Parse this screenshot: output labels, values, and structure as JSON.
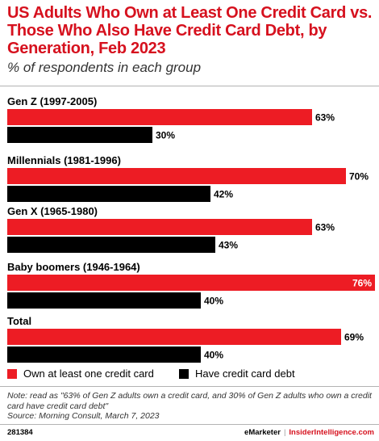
{
  "title": "US Adults Who Own at Least One Credit Card vs. Those Who Also Have Credit Card Debt, by Generation, Feb 2023",
  "subtitle": "% of respondents in each group",
  "colors": {
    "accent": "#d6111e",
    "series_own": "#ed1c24",
    "series_debt": "#000000"
  },
  "chart_data": {
    "type": "bar",
    "orientation": "horizontal",
    "categories": [
      "Gen Z (1997-2005)",
      "Millennials (1981-1996)",
      "Gen X (1965-1980)",
      "Baby boomers (1946-1964)",
      "Total"
    ],
    "series": [
      {
        "name": "Own at least one credit card",
        "values": [
          63,
          70,
          63,
          76,
          69
        ],
        "labels": [
          "63%",
          "70%",
          "63%",
          "76%",
          "69%"
        ]
      },
      {
        "name": "Have credit card debt",
        "values": [
          30,
          42,
          43,
          40,
          40
        ],
        "labels": [
          "30%",
          "42%",
          "43%",
          "40%",
          "40%"
        ]
      }
    ],
    "xlim": [
      0,
      76
    ],
    "grid": false,
    "legend": "bottom-left"
  },
  "legend": {
    "own_label": "Own at least one credit card",
    "debt_label": "Have credit card debt"
  },
  "footnotes": {
    "note": "Note: read as \"63% of Gen Z adults own a credit card, and 30% of Gen Z adults who own a credit card have credit card debt\"",
    "source": "Source: Morning Consult, March 7, 2023"
  },
  "footer": {
    "chart_id": "281384",
    "brand_a": "eMarketer",
    "separator": "|",
    "brand_b": "InsiderIntelligence.com"
  }
}
